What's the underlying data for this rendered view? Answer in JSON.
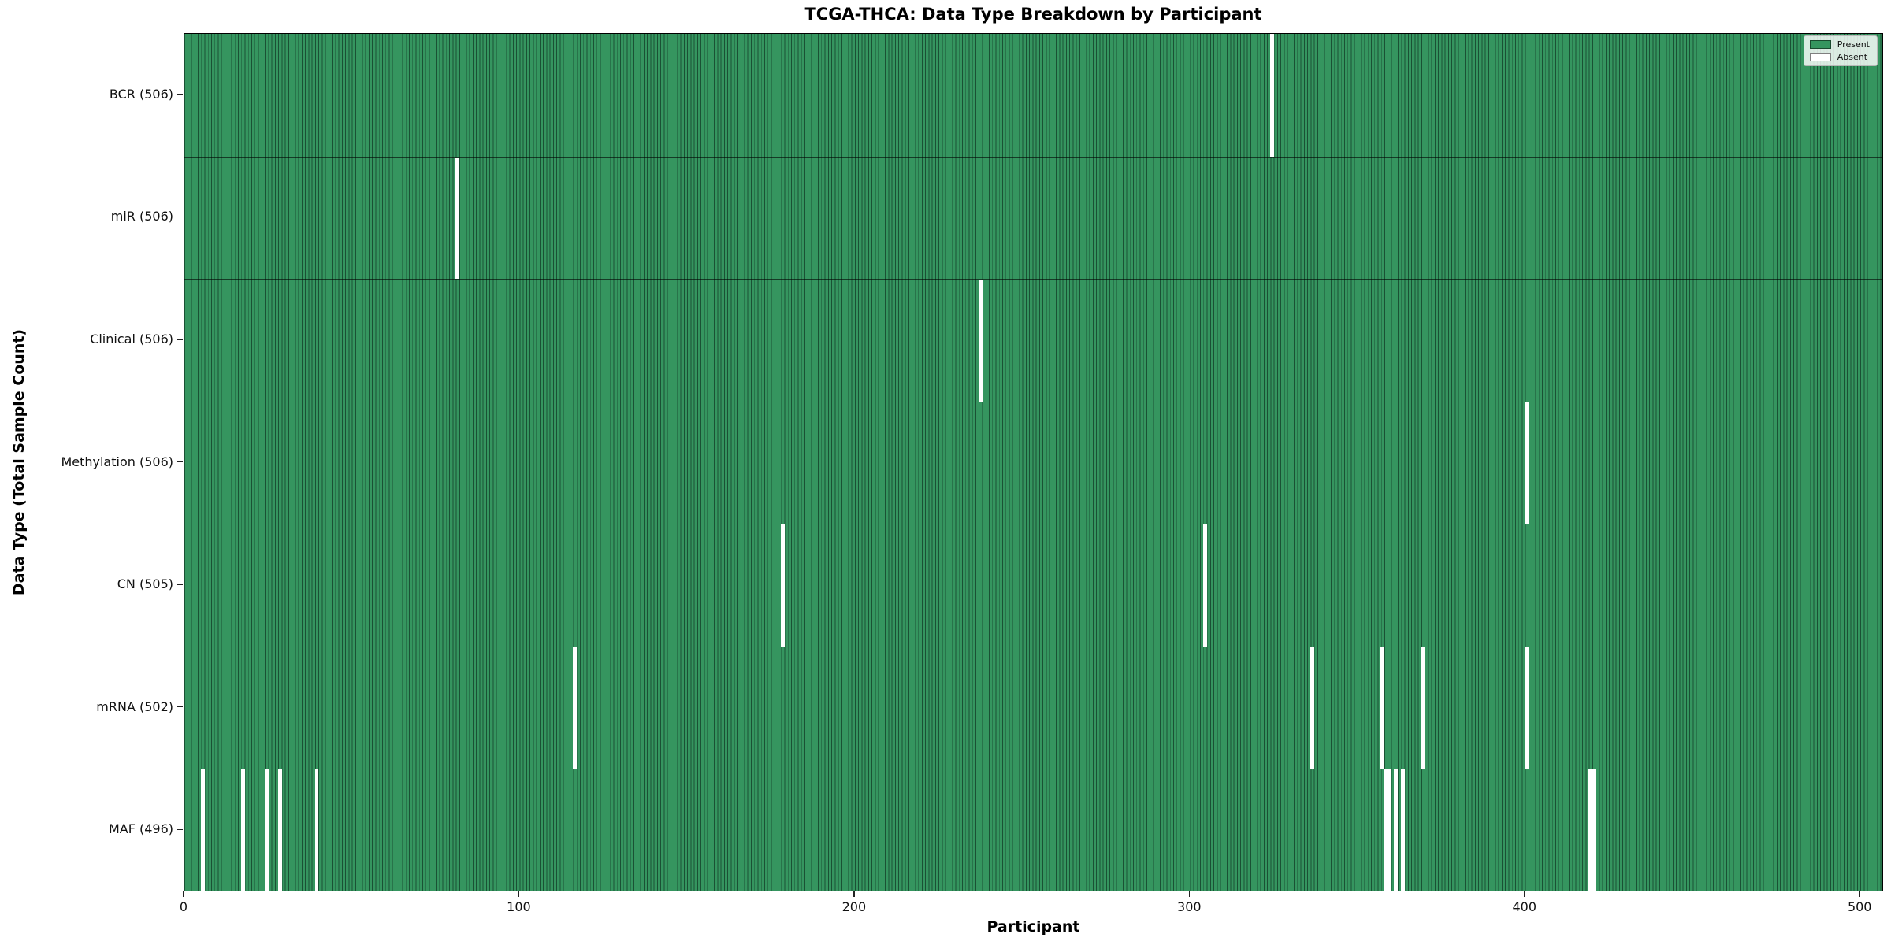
{
  "title": "TCGA-THCA: Data Type Breakdown by Participant",
  "chart_data": {
    "type": "heatmap",
    "title": "TCGA-THCA: Data Type Breakdown by Participant",
    "xlabel": "Participant",
    "ylabel": "Data Type (Total Sample Count)",
    "legend": [
      "Present",
      "Absent"
    ],
    "legend_position": "upper right",
    "x_ticks": [
      0,
      100,
      200,
      300,
      400,
      500
    ],
    "xlim": [
      0,
      507
    ],
    "n_participants": 507,
    "grid": false,
    "colors": {
      "present": "#35955f",
      "bar_edge": "#1a5134",
      "absent": "#ffffff",
      "row_separator": "#1c1c1c"
    },
    "rows": [
      {
        "name": "BCR",
        "label": "BCR (506)",
        "total": 506,
        "absent": [
          324
        ]
      },
      {
        "name": "miR",
        "label": "miR (506)",
        "total": 506,
        "absent": [
          81
        ]
      },
      {
        "name": "Clinical",
        "label": "Clinical (506)",
        "total": 506,
        "absent": [
          237
        ]
      },
      {
        "name": "Methylation",
        "label": "Methylation (506)",
        "total": 506,
        "absent": [
          400
        ]
      },
      {
        "name": "CN",
        "label": "CN (505)",
        "total": 505,
        "absent": [
          178,
          304
        ]
      },
      {
        "name": "mRNA",
        "label": "mRNA (502)",
        "total": 502,
        "absent": [
          116,
          336,
          357,
          369,
          400
        ]
      },
      {
        "name": "MAF",
        "label": "MAF (496)",
        "total": 496,
        "absent": [
          5,
          17,
          24,
          28,
          39,
          358,
          359,
          361,
          363,
          419,
          420
        ]
      }
    ]
  }
}
